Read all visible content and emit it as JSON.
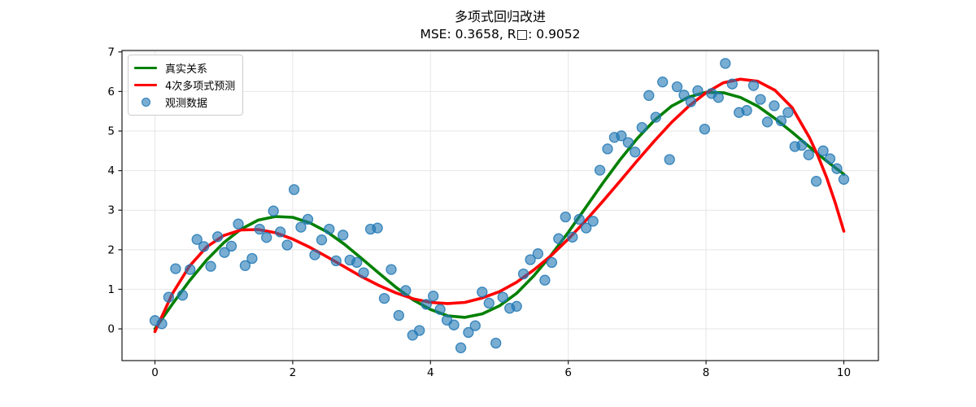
{
  "title": {
    "line1": "多项式回归改进",
    "line2": "MSE: 0.3658, R□: 0.9052"
  },
  "legend": {
    "items": [
      {
        "label": "真实关系",
        "type": "line",
        "color": "#008000"
      },
      {
        "label": "4次多项式预测",
        "type": "line",
        "color": "#ff0000"
      },
      {
        "label": "观测数据",
        "type": "scatter",
        "color": "#1f77b4"
      }
    ]
  },
  "chart_data": {
    "type": "scatter",
    "title": "多项式回归改进",
    "subtitle": "MSE: 0.3658, R□: 0.9052",
    "mse": 0.3658,
    "r_squared": 0.9052,
    "xlabel": "",
    "ylabel": "",
    "xlim": [
      -0.478,
      10.502
    ],
    "ylim": [
      -0.802,
      7.037
    ],
    "x_ticks": [
      0,
      2,
      4,
      6,
      8,
      10
    ],
    "y_ticks": [
      0,
      1,
      2,
      3,
      4,
      5,
      6,
      7
    ],
    "grid": true,
    "grid_color": "#e6e6e6",
    "spine_color": "#1a1a1a",
    "legend_position": "upper left",
    "series": [
      {
        "name": "真实关系",
        "type": "line",
        "color": "#008000",
        "points": [
          [
            0,
            0.0
          ],
          [
            0.25,
            0.62
          ],
          [
            0.5,
            1.21
          ],
          [
            0.75,
            1.74
          ],
          [
            1,
            2.18
          ],
          [
            1.25,
            2.52
          ],
          [
            1.5,
            2.75
          ],
          [
            1.75,
            2.84
          ],
          [
            2,
            2.82
          ],
          [
            2.25,
            2.68
          ],
          [
            2.5,
            2.45
          ],
          [
            2.75,
            2.14
          ],
          [
            3,
            1.78
          ],
          [
            3.25,
            1.41
          ],
          [
            3.5,
            1.05
          ],
          [
            3.75,
            0.73
          ],
          [
            4,
            0.49
          ],
          [
            4.25,
            0.33
          ],
          [
            4.5,
            0.29
          ],
          [
            4.75,
            0.38
          ],
          [
            5,
            0.58
          ],
          [
            5.25,
            0.9
          ],
          [
            5.5,
            1.34
          ],
          [
            5.75,
            1.86
          ],
          [
            6,
            2.44
          ],
          [
            6.25,
            3.06
          ],
          [
            6.5,
            3.68
          ],
          [
            6.75,
            4.27
          ],
          [
            7,
            4.81
          ],
          [
            7.25,
            5.27
          ],
          [
            7.5,
            5.63
          ],
          [
            7.75,
            5.86
          ],
          [
            8,
            5.98
          ],
          [
            8.25,
            5.97
          ],
          [
            8.5,
            5.85
          ],
          [
            8.75,
            5.63
          ],
          [
            9,
            5.32
          ],
          [
            9.25,
            4.97
          ],
          [
            9.5,
            4.6
          ],
          [
            9.75,
            4.24
          ],
          [
            10,
            3.91
          ]
        ]
      },
      {
        "name": "4次多项式预测",
        "type": "line",
        "color": "#ff0000",
        "points": [
          [
            0,
            -0.07
          ],
          [
            0.25,
            0.88
          ],
          [
            0.5,
            1.58
          ],
          [
            0.75,
            2.07
          ],
          [
            1,
            2.36
          ],
          [
            1.25,
            2.5
          ],
          [
            1.5,
            2.51
          ],
          [
            1.75,
            2.43
          ],
          [
            2,
            2.27
          ],
          [
            2.25,
            2.06
          ],
          [
            2.5,
            1.82
          ],
          [
            2.75,
            1.57
          ],
          [
            3,
            1.32
          ],
          [
            3.25,
            1.1
          ],
          [
            3.5,
            0.91
          ],
          [
            3.75,
            0.76
          ],
          [
            4,
            0.67
          ],
          [
            4.25,
            0.64
          ],
          [
            4.5,
            0.67
          ],
          [
            4.75,
            0.78
          ],
          [
            5,
            0.94
          ],
          [
            5.25,
            1.18
          ],
          [
            5.5,
            1.49
          ],
          [
            5.75,
            1.85
          ],
          [
            6,
            2.27
          ],
          [
            6.25,
            2.73
          ],
          [
            6.5,
            3.22
          ],
          [
            6.75,
            3.73
          ],
          [
            7,
            4.25
          ],
          [
            7.25,
            4.75
          ],
          [
            7.5,
            5.22
          ],
          [
            7.75,
            5.63
          ],
          [
            8,
            5.97
          ],
          [
            8.25,
            6.22
          ],
          [
            8.5,
            6.31
          ],
          [
            8.75,
            6.26
          ],
          [
            9,
            6.03
          ],
          [
            9.25,
            5.59
          ],
          [
            9.5,
            4.84
          ],
          [
            9.625,
            4.37
          ],
          [
            9.75,
            3.83
          ],
          [
            9.875,
            3.19
          ],
          [
            10,
            2.47
          ]
        ]
      },
      {
        "name": "观测数据",
        "type": "scatter",
        "color": "#1f77b4",
        "alpha": 0.6,
        "points": [
          [
            0.0,
            0.21
          ],
          [
            0.1,
            0.13
          ],
          [
            0.2,
            0.8
          ],
          [
            0.3,
            1.52
          ],
          [
            0.4,
            0.85
          ],
          [
            0.51,
            1.5
          ],
          [
            0.61,
            2.26
          ],
          [
            0.71,
            2.08
          ],
          [
            0.81,
            1.58
          ],
          [
            0.91,
            2.33
          ],
          [
            1.01,
            1.93
          ],
          [
            1.11,
            2.09
          ],
          [
            1.21,
            2.65
          ],
          [
            1.31,
            1.6
          ],
          [
            1.41,
            1.78
          ],
          [
            1.52,
            2.52
          ],
          [
            1.62,
            2.31
          ],
          [
            1.72,
            2.98
          ],
          [
            1.82,
            2.45
          ],
          [
            1.92,
            2.12
          ],
          [
            2.02,
            3.52
          ],
          [
            2.12,
            2.57
          ],
          [
            2.22,
            2.77
          ],
          [
            2.32,
            1.87
          ],
          [
            2.42,
            2.25
          ],
          [
            2.53,
            2.52
          ],
          [
            2.63,
            1.72
          ],
          [
            2.73,
            2.37
          ],
          [
            2.83,
            1.74
          ],
          [
            2.93,
            1.68
          ],
          [
            3.03,
            1.42
          ],
          [
            3.13,
            2.52
          ],
          [
            3.23,
            2.55
          ],
          [
            3.33,
            0.77
          ],
          [
            3.43,
            1.5
          ],
          [
            3.54,
            0.34
          ],
          [
            3.64,
            0.97
          ],
          [
            3.74,
            -0.16
          ],
          [
            3.84,
            -0.04
          ],
          [
            3.94,
            0.62
          ],
          [
            4.04,
            0.83
          ],
          [
            4.14,
            0.49
          ],
          [
            4.24,
            0.22
          ],
          [
            4.34,
            0.1
          ],
          [
            4.44,
            -0.48
          ],
          [
            4.55,
            -0.09
          ],
          [
            4.65,
            0.08
          ],
          [
            4.75,
            0.93
          ],
          [
            4.85,
            0.65
          ],
          [
            4.95,
            -0.36
          ],
          [
            5.05,
            0.8
          ],
          [
            5.15,
            0.52
          ],
          [
            5.25,
            0.57
          ],
          [
            5.35,
            1.39
          ],
          [
            5.45,
            1.75
          ],
          [
            5.56,
            1.9
          ],
          [
            5.66,
            1.23
          ],
          [
            5.76,
            1.68
          ],
          [
            5.86,
            2.28
          ],
          [
            5.96,
            2.83
          ],
          [
            6.06,
            2.32
          ],
          [
            6.16,
            2.77
          ],
          [
            6.26,
            2.55
          ],
          [
            6.36,
            2.72
          ],
          [
            6.46,
            4.01
          ],
          [
            6.57,
            4.55
          ],
          [
            6.67,
            4.84
          ],
          [
            6.77,
            4.88
          ],
          [
            6.87,
            4.71
          ],
          [
            6.97,
            4.47
          ],
          [
            7.07,
            5.09
          ],
          [
            7.17,
            5.9
          ],
          [
            7.27,
            5.35
          ],
          [
            7.37,
            6.24
          ],
          [
            7.47,
            4.28
          ],
          [
            7.58,
            6.12
          ],
          [
            7.68,
            5.91
          ],
          [
            7.78,
            5.74
          ],
          [
            7.88,
            6.02
          ],
          [
            7.98,
            5.05
          ],
          [
            8.08,
            5.95
          ],
          [
            8.18,
            5.85
          ],
          [
            8.28,
            6.71
          ],
          [
            8.38,
            6.19
          ],
          [
            8.48,
            5.47
          ],
          [
            8.59,
            5.52
          ],
          [
            8.69,
            6.15
          ],
          [
            8.79,
            5.8
          ],
          [
            8.89,
            5.23
          ],
          [
            8.99,
            5.64
          ],
          [
            9.09,
            5.26
          ],
          [
            9.19,
            5.47
          ],
          [
            9.29,
            4.61
          ],
          [
            9.39,
            4.64
          ],
          [
            9.49,
            4.4
          ],
          [
            9.6,
            3.73
          ],
          [
            9.7,
            4.5
          ],
          [
            9.8,
            4.3
          ],
          [
            9.9,
            4.05
          ],
          [
            10.0,
            3.78
          ]
        ]
      }
    ]
  }
}
